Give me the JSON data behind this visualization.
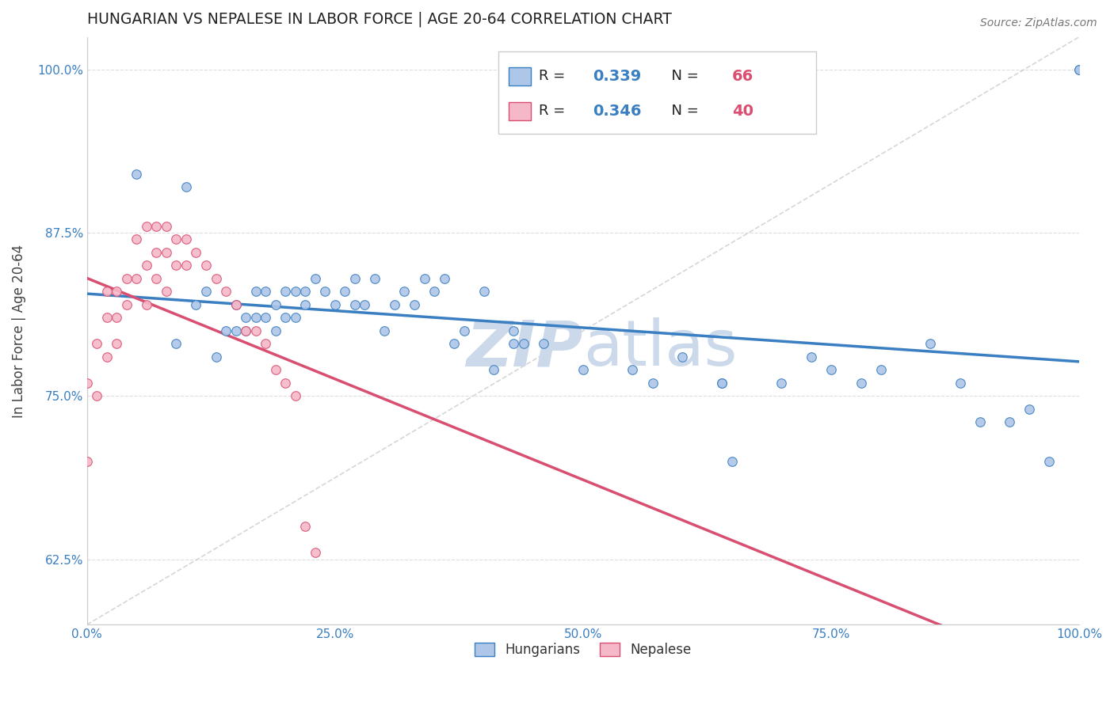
{
  "title": "HUNGARIAN VS NEPALESE IN LABOR FORCE | AGE 20-64 CORRELATION CHART",
  "source_text": "Source: ZipAtlas.com",
  "ylabel": "In Labor Force | Age 20-64",
  "xlim": [
    0.0,
    1.0
  ],
  "ylim": [
    0.575,
    1.025
  ],
  "xticks": [
    0.0,
    0.25,
    0.5,
    0.75,
    1.0
  ],
  "xticklabels": [
    "0.0%",
    "25.0%",
    "50.0%",
    "75.0%",
    "100.0%"
  ],
  "yticks": [
    0.625,
    0.75,
    0.875,
    1.0
  ],
  "yticklabels": [
    "62.5%",
    "75.0%",
    "87.5%",
    "100.0%"
  ],
  "hungarian_R": 0.339,
  "hungarian_N": 66,
  "nepalese_R": 0.346,
  "nepalese_N": 40,
  "hungarian_color": "#aec6e8",
  "nepalese_color": "#f5b8c8",
  "trendline_hungarian_color": "#3a7fc1",
  "trendline_nepalese_color": "#d94f72",
  "diagonal_color": "#cccccc",
  "grid_color": "#dddddd",
  "watermark_color": "#ccd9ea",
  "axis_tick_color": "#3a7fc1",
  "hung_x": [
    0.05,
    0.09,
    0.1,
    0.11,
    0.12,
    0.13,
    0.14,
    0.15,
    0.15,
    0.16,
    0.16,
    0.17,
    0.17,
    0.18,
    0.18,
    0.19,
    0.19,
    0.2,
    0.2,
    0.21,
    0.21,
    0.22,
    0.22,
    0.23,
    0.24,
    0.25,
    0.26,
    0.27,
    0.27,
    0.28,
    0.29,
    0.3,
    0.31,
    0.32,
    0.33,
    0.34,
    0.35,
    0.36,
    0.37,
    0.38,
    0.4,
    0.41,
    0.43,
    0.43,
    0.44,
    0.46,
    0.5,
    0.55,
    0.57,
    0.6,
    0.64,
    0.64,
    0.65,
    0.7,
    0.73,
    0.75,
    0.78,
    0.8,
    0.85,
    0.88,
    0.9,
    0.93,
    0.95,
    0.97,
    1.0,
    1.0
  ],
  "hung_y": [
    0.92,
    0.79,
    0.91,
    0.82,
    0.83,
    0.78,
    0.8,
    0.82,
    0.8,
    0.81,
    0.8,
    0.83,
    0.81,
    0.83,
    0.81,
    0.82,
    0.8,
    0.83,
    0.81,
    0.83,
    0.81,
    0.83,
    0.82,
    0.84,
    0.83,
    0.82,
    0.83,
    0.84,
    0.82,
    0.82,
    0.84,
    0.8,
    0.82,
    0.83,
    0.82,
    0.84,
    0.83,
    0.84,
    0.79,
    0.8,
    0.83,
    0.77,
    0.8,
    0.79,
    0.79,
    0.79,
    0.77,
    0.77,
    0.76,
    0.78,
    0.76,
    0.76,
    0.7,
    0.76,
    0.78,
    0.77,
    0.76,
    0.77,
    0.79,
    0.76,
    0.73,
    0.73,
    0.74,
    0.7,
    1.0,
    1.0
  ],
  "nep_x": [
    0.0,
    0.0,
    0.01,
    0.01,
    0.02,
    0.02,
    0.02,
    0.03,
    0.03,
    0.03,
    0.04,
    0.04,
    0.05,
    0.05,
    0.06,
    0.06,
    0.06,
    0.07,
    0.07,
    0.07,
    0.08,
    0.08,
    0.08,
    0.09,
    0.09,
    0.1,
    0.1,
    0.11,
    0.12,
    0.13,
    0.14,
    0.15,
    0.16,
    0.17,
    0.18,
    0.19,
    0.2,
    0.21,
    0.22,
    0.23
  ],
  "nep_y": [
    0.76,
    0.7,
    0.79,
    0.75,
    0.83,
    0.81,
    0.78,
    0.83,
    0.81,
    0.79,
    0.84,
    0.82,
    0.87,
    0.84,
    0.88,
    0.85,
    0.82,
    0.88,
    0.86,
    0.84,
    0.88,
    0.86,
    0.83,
    0.87,
    0.85,
    0.87,
    0.85,
    0.86,
    0.85,
    0.84,
    0.83,
    0.82,
    0.8,
    0.8,
    0.79,
    0.77,
    0.76,
    0.75,
    0.65,
    0.63
  ],
  "marker_size": 70
}
